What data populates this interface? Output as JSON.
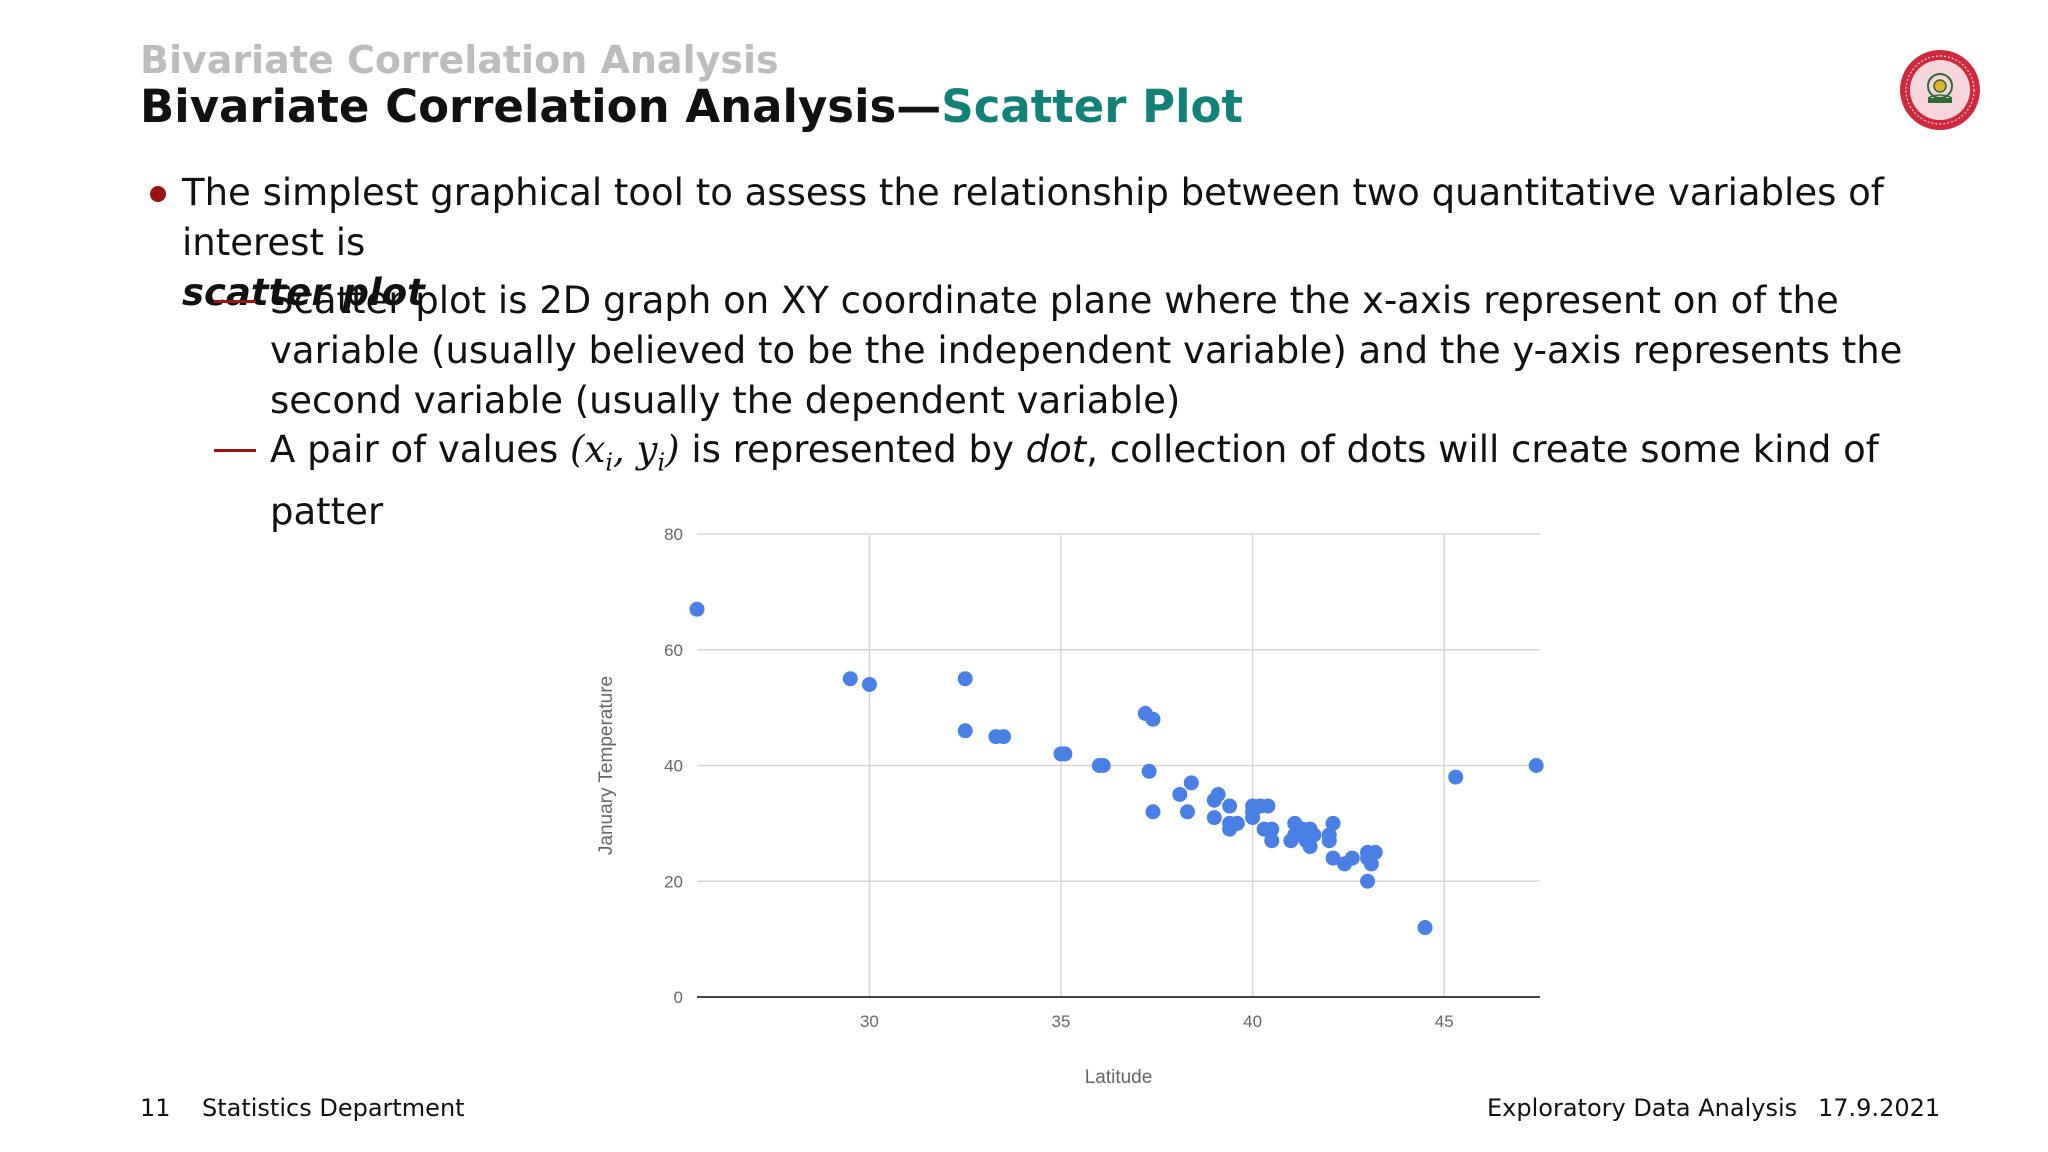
{
  "header": {
    "section": "Bivariate Correlation Analysis",
    "title_main": "Bivariate Correlation Analysis—",
    "title_accent": "Scatter Plot"
  },
  "content": {
    "bullet1_text": "The simplest graphical tool to assess the relationship between two quantitative variables of interest is",
    "bullet1_emphasis": "scatter plot",
    "sub1_text": "Scatter plot is 2D graph on XY coordinate plane where the x-axis represent on of the variable (usually believed to be the independent variable) and the y-axis represents the second variable (usually the dependent variable)",
    "sub2_before": "A pair of values",
    "sub2_math_open": "(",
    "sub2_math_x": "x",
    "sub2_math_i1": "i",
    "sub2_math_comma": ", ",
    "sub2_math_y": "y",
    "sub2_math_i2": "i",
    "sub2_math_close": ")",
    "sub2_mid": "is represented by",
    "sub2_emphasis": "dot",
    "sub2_after": ", collection of dots will create some kind of patter"
  },
  "chart_data": {
    "type": "scatter",
    "xlabel": "Latitude",
    "ylabel": "January Temperature",
    "xlim": [
      25.5,
      47.5
    ],
    "ylim": [
      0,
      80
    ],
    "xticks": [
      30,
      35,
      40,
      45
    ],
    "yticks": [
      0,
      20,
      40,
      60,
      80
    ],
    "grid": true,
    "point_color": "#4a80e6",
    "points": [
      [
        25.5,
        67
      ],
      [
        29.5,
        55
      ],
      [
        30.0,
        54
      ],
      [
        32.5,
        55
      ],
      [
        32.5,
        46
      ],
      [
        33.3,
        45
      ],
      [
        33.5,
        45
      ],
      [
        35.0,
        42
      ],
      [
        35.1,
        42
      ],
      [
        36.0,
        40
      ],
      [
        36.1,
        40
      ],
      [
        37.2,
        49
      ],
      [
        37.4,
        48
      ],
      [
        37.3,
        39
      ],
      [
        37.4,
        32
      ],
      [
        38.1,
        35
      ],
      [
        38.4,
        37
      ],
      [
        38.3,
        32
      ],
      [
        39.0,
        34
      ],
      [
        39.1,
        35
      ],
      [
        39.0,
        31
      ],
      [
        39.4,
        33
      ],
      [
        39.4,
        30
      ],
      [
        39.4,
        29
      ],
      [
        39.6,
        30
      ],
      [
        40.0,
        33
      ],
      [
        40.0,
        32
      ],
      [
        40.0,
        31
      ],
      [
        40.2,
        33
      ],
      [
        40.4,
        33
      ],
      [
        40.3,
        29
      ],
      [
        40.5,
        29
      ],
      [
        40.5,
        27
      ],
      [
        41.1,
        30
      ],
      [
        41.1,
        28
      ],
      [
        41.0,
        27
      ],
      [
        41.3,
        29
      ],
      [
        41.4,
        27
      ],
      [
        41.5,
        29
      ],
      [
        41.5,
        26
      ],
      [
        41.2,
        28
      ],
      [
        41.6,
        28
      ],
      [
        42.1,
        30
      ],
      [
        42.0,
        28
      ],
      [
        42.0,
        27
      ],
      [
        42.1,
        24
      ],
      [
        42.4,
        23
      ],
      [
        42.6,
        24
      ],
      [
        43.0,
        25
      ],
      [
        43.0,
        24
      ],
      [
        43.1,
        23
      ],
      [
        43.0,
        20
      ],
      [
        43.2,
        25
      ],
      [
        44.5,
        12
      ],
      [
        45.3,
        38
      ],
      [
        47.4,
        40
      ]
    ]
  },
  "footer": {
    "page": "11",
    "department": "Statistics Department",
    "course": "Exploratory Data Analysis",
    "date": "17.9.2021"
  },
  "logo": {
    "icon": "university-seal-icon",
    "ring_color": "#d2283c",
    "seal_fill": "#f6d6dc",
    "emblem_color": "#2c6b34"
  }
}
